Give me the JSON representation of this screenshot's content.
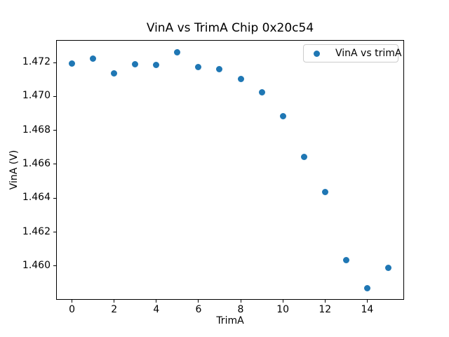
{
  "chart_data": {
    "type": "scatter",
    "title": "VinA vs TrimA Chip 0x20c54",
    "xlabel": "TrimA",
    "ylabel": "VinA (V)",
    "x": [
      0,
      1,
      2,
      3,
      4,
      5,
      6,
      7,
      8,
      9,
      10,
      11,
      12,
      13,
      14,
      15
    ],
    "y": [
      1.47192,
      1.47224,
      1.47134,
      1.47188,
      1.47186,
      1.47258,
      1.47175,
      1.47161,
      1.47103,
      1.47025,
      1.46883,
      1.46645,
      1.46436,
      1.46036,
      1.4587,
      1.45989
    ],
    "xlim": [
      -0.75,
      15.75
    ],
    "ylim": [
      1.458,
      1.4733
    ],
    "xticks": [
      0,
      2,
      4,
      6,
      8,
      10,
      12,
      14
    ],
    "yticks": [
      1.46,
      1.462,
      1.464,
      1.466,
      1.468,
      1.47,
      1.472
    ],
    "ytick_decimals": 3,
    "grid": false,
    "marker_color": "#1f77b4",
    "legend": {
      "label": "VinA vs trimA",
      "position": "upper-right"
    }
  }
}
